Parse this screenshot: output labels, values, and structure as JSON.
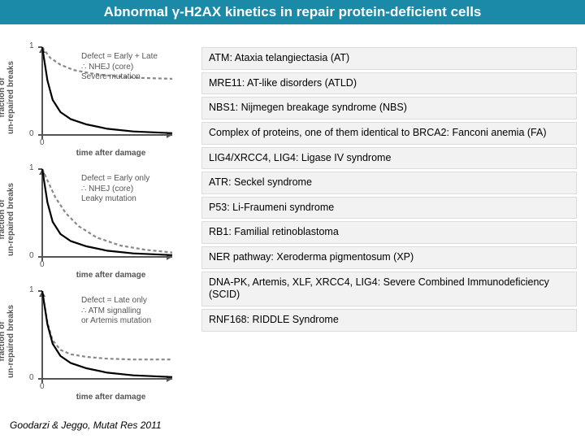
{
  "title": "Abnormal γ-H2AX kinetics in repair protein-deficient cells",
  "title_bg": "#1a8aa8",
  "title_color": "#ffffff",
  "citation": "Goodarzi & Jeggo, Mutat Res 2011",
  "list_bg": "#f2f2f2",
  "list_border": "#dcdcdc",
  "charts_common": {
    "ylabel": "fraction of\nun-repaired breaks",
    "xlabel": "time after damage",
    "ylim": [
      0,
      1
    ],
    "xlim": [
      0,
      100
    ],
    "ytick_labels": [
      "0",
      "1"
    ],
    "normal_color": "#000000",
    "defect_color": "#888888",
    "defect_dash": "4 3",
    "line_width": 2.2,
    "axis_color": "#555555",
    "axis_width": 2
  },
  "charts": [
    {
      "defect_label": "Defect = Early + Late\n∴ NHEJ (core)\nSevere mutation",
      "normal_points": [
        [
          0,
          1.0
        ],
        [
          4,
          0.62
        ],
        [
          8,
          0.4
        ],
        [
          14,
          0.26
        ],
        [
          22,
          0.18
        ],
        [
          34,
          0.12
        ],
        [
          50,
          0.07
        ],
        [
          70,
          0.04
        ],
        [
          100,
          0.02
        ]
      ],
      "defect_points": [
        [
          0,
          1.0
        ],
        [
          6,
          0.88
        ],
        [
          14,
          0.8
        ],
        [
          24,
          0.74
        ],
        [
          38,
          0.7
        ],
        [
          55,
          0.67
        ],
        [
          75,
          0.65
        ],
        [
          100,
          0.64
        ]
      ]
    },
    {
      "defect_label": "Defect = Early only\n∴ NHEJ (core)\nLeaky mutation",
      "normal_points": [
        [
          0,
          1.0
        ],
        [
          4,
          0.62
        ],
        [
          8,
          0.4
        ],
        [
          14,
          0.26
        ],
        [
          22,
          0.18
        ],
        [
          34,
          0.12
        ],
        [
          50,
          0.07
        ],
        [
          70,
          0.04
        ],
        [
          100,
          0.02
        ]
      ],
      "defect_points": [
        [
          0,
          1.0
        ],
        [
          5,
          0.84
        ],
        [
          10,
          0.68
        ],
        [
          18,
          0.5
        ],
        [
          28,
          0.35
        ],
        [
          42,
          0.22
        ],
        [
          60,
          0.13
        ],
        [
          80,
          0.08
        ],
        [
          100,
          0.05
        ]
      ]
    },
    {
      "defect_label": "Defect = Late only\n∴ ATM signalling\nor Artemis mutation",
      "normal_points": [
        [
          0,
          1.0
        ],
        [
          4,
          0.62
        ],
        [
          8,
          0.4
        ],
        [
          14,
          0.26
        ],
        [
          22,
          0.18
        ],
        [
          34,
          0.12
        ],
        [
          50,
          0.07
        ],
        [
          70,
          0.04
        ],
        [
          100,
          0.02
        ]
      ],
      "defect_points": [
        [
          0,
          1.0
        ],
        [
          4,
          0.64
        ],
        [
          8,
          0.44
        ],
        [
          14,
          0.33
        ],
        [
          22,
          0.28
        ],
        [
          34,
          0.25
        ],
        [
          50,
          0.23
        ],
        [
          70,
          0.22
        ],
        [
          100,
          0.22
        ]
      ]
    }
  ],
  "list_items": [
    "ATM: Ataxia telangiectasia (AT)",
    "MRE11: AT-like disorders (ATLD)",
    "NBS1: Nijmegen breakage syndrome (NBS)",
    "Complex of proteins, one of them identical to BRCA2: Fanconi anemia (FA)",
    "LIG4/XRCC4, LIG4: Ligase IV syndrome",
    "ATR: Seckel syndrome",
    "P53: Li-Fraumeni syndrome",
    "RB1: Familial retinoblastoma",
    "NER pathway: Xeroderma pigmentosum (XP)",
    "DNA-PK, Artemis, XLF, XRCC4, LIG4: Severe Combined Immunodeficiency (SCID)",
    "RNF168: RIDDLE Syndrome"
  ]
}
